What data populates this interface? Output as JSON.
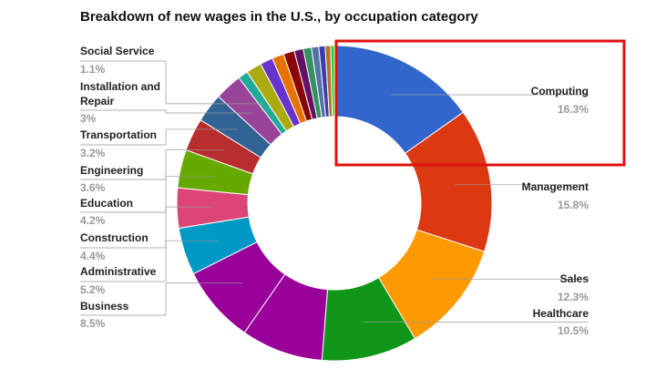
{
  "chart_data": {
    "type": "donut",
    "title": "Breakdown of new wages in the U.S., by occupation category",
    "categories": [
      "Computing",
      "Management",
      "Sales",
      "Healthcare",
      null,
      "Business",
      "Administrative",
      "Construction",
      "Education",
      "Engineering",
      "Transportation",
      "Installation and Repair",
      "Social Service",
      null,
      null,
      null,
      null,
      null,
      null,
      null,
      null,
      null,
      null
    ],
    "values": [
      16.3,
      15.8,
      12.3,
      10.5,
      9.0,
      8.5,
      5.2,
      4.4,
      4.2,
      3.6,
      3.2,
      3,
      1.1,
      1.7,
      1.4,
      1.3,
      1.2,
      1.0,
      0.9,
      0.8,
      0.7,
      0.6,
      0.4
    ],
    "value_labels": [
      "16.3%",
      "15.8%",
      "12.3%",
      "10.5%",
      null,
      "8.5%",
      "5.2%",
      "4.4%",
      "4.2%",
      "3.6%",
      "3.2%",
      "3%",
      "1.1%",
      null,
      null,
      null,
      null,
      null,
      null,
      null,
      null,
      null,
      null
    ],
    "colors": [
      "#3366cc",
      "#dc3912",
      "#ff9900",
      "#109618",
      "#990099",
      "#990099",
      "#0099c6",
      "#dd4477",
      "#66aa00",
      "#b82e2e",
      "#316395",
      "#994499",
      "#22aa99",
      "#aaaa11",
      "#6633cc",
      "#e67300",
      "#8b0707",
      "#651067",
      "#329262",
      "#5574a6",
      "#3b3eac",
      "#b77322",
      "#16d620"
    ]
  }
}
